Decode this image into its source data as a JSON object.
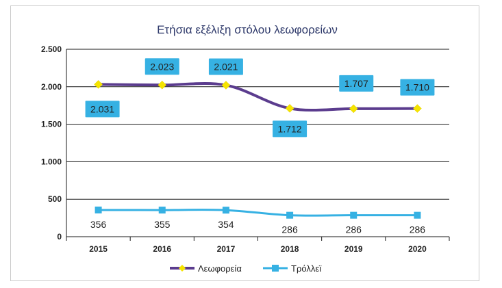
{
  "chart_data": {
    "type": "line",
    "title": "Ετήσια εξέλιξη στόλου λεωφορείων",
    "categories": [
      "2015",
      "2016",
      "2017",
      "2018",
      "2019",
      "2020"
    ],
    "ylim": [
      0,
      2500
    ],
    "y_ticks": [
      0,
      500,
      1000,
      1500,
      2000,
      2500
    ],
    "y_tick_labels": [
      "0",
      "500",
      "1.000",
      "1.500",
      "2.000",
      "2.500"
    ],
    "grid": true,
    "legend_position": "bottom",
    "series": [
      {
        "name": "Λεωφορεία",
        "values": [
          2031,
          2023,
          2021,
          1712,
          1707,
          1710
        ],
        "labels": [
          "2.031",
          "2.023",
          "2.021",
          "1.712",
          "1.707",
          "1.710"
        ],
        "line_color": "#5b3c8e",
        "marker_color": "#f5e400",
        "marker": "diamond"
      },
      {
        "name": "Τρόλλεϊ",
        "values": [
          356,
          355,
          354,
          286,
          286,
          286
        ],
        "labels": [
          "356",
          "355",
          "354",
          "286",
          "286",
          "286"
        ],
        "line_color": "#36b1e3",
        "marker_color": "#36b1e3",
        "marker": "square"
      }
    ]
  }
}
